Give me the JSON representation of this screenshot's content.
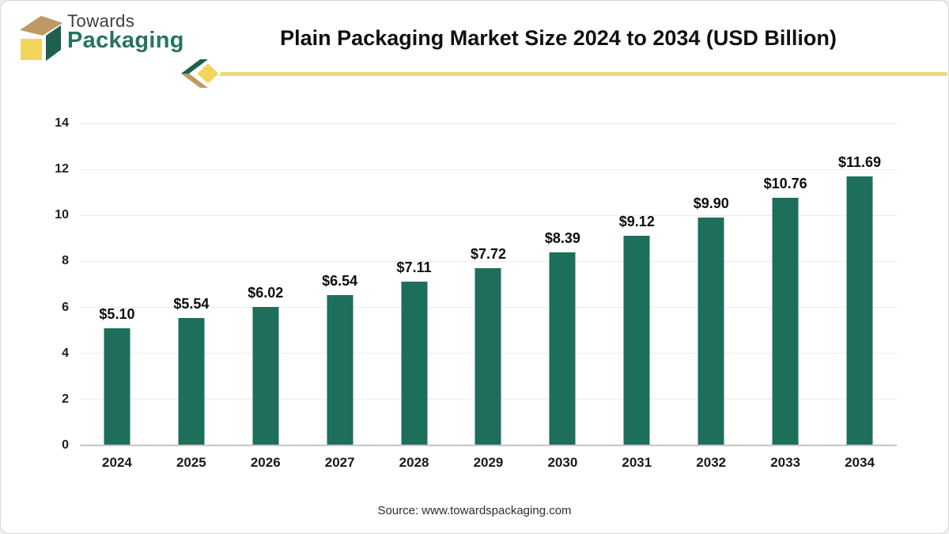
{
  "brand": {
    "logo_icon": "packaging-box-3d-icon",
    "name_top": "Towards",
    "name_bottom": "Packaging"
  },
  "header": {
    "title": "Plain Packaging Market Size 2024 to 2034 (USD Billion)"
  },
  "chart_data": {
    "type": "bar",
    "title": "Plain Packaging Market Size 2024 to 2034 (USD Billion)",
    "unit": "USD Billion",
    "categories": [
      "2024",
      "2025",
      "2026",
      "2027",
      "2028",
      "2029",
      "2030",
      "2031",
      "2032",
      "2033",
      "2034"
    ],
    "values": [
      5.1,
      5.54,
      6.02,
      6.54,
      7.11,
      7.72,
      8.39,
      9.12,
      9.9,
      10.76,
      11.69
    ],
    "value_labels": [
      "$5.10",
      "$5.54",
      "$6.02",
      "$6.54",
      "$7.11",
      "$7.72",
      "$8.39",
      "$9.12",
      "$9.90",
      "$10.76",
      "$11.69"
    ],
    "xlabel": "",
    "ylabel": "",
    "ylim": [
      0,
      14
    ],
    "yticks": [
      0,
      2,
      4,
      6,
      8,
      10,
      12,
      14
    ],
    "grid": "horizontal-light",
    "legend": "none",
    "bar_color": "#1e6e5c"
  },
  "footer": {
    "source": "Source: www.towardspackaging.com"
  },
  "colors": {
    "bar": "#1e6e5c",
    "brand_green": "#26735f",
    "logo_green_face": "#1d604f",
    "logo_tan": "#bf9864",
    "logo_yellow": "#f4d55c",
    "divider_yellow": "#ecd979",
    "gridline": "#ececec",
    "axis_line": "#c6c6c6",
    "text_dark": "#101010"
  }
}
